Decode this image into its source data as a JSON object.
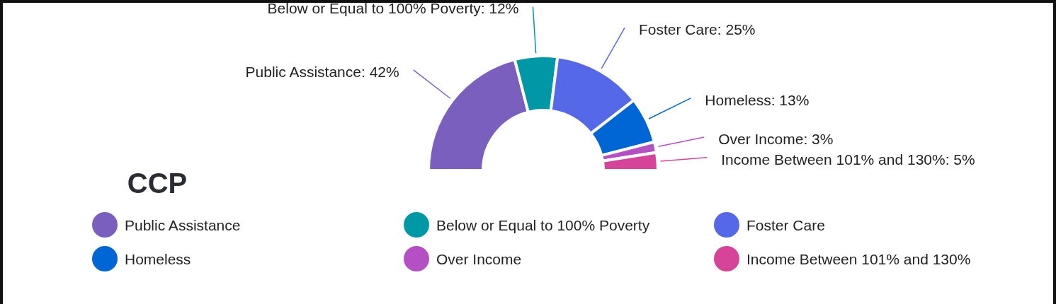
{
  "chart_data": {
    "type": "donut",
    "title": "CCP",
    "categories": [
      "Public Assistance",
      "Below or Equal to 100% Poverty",
      "Foster Care",
      "Homeless",
      "Over Income",
      "Income Between 101% and 130%"
    ],
    "values": [
      42,
      12,
      25,
      13,
      3,
      5
    ],
    "value_labels": [
      "Public Assistance: 42%",
      "Below or Equal to 100% Poverty: 12%",
      "Foster Care: 25%",
      "Homeless: 13%",
      "Over Income: 3%",
      "Income Between 101% and 130%: 5%"
    ],
    "colors": [
      "#7b5fbf",
      "#0097a7",
      "#5468e8",
      "#0066d6",
      "#b44fc4",
      "#d6449a"
    ],
    "legend": "bottom"
  }
}
